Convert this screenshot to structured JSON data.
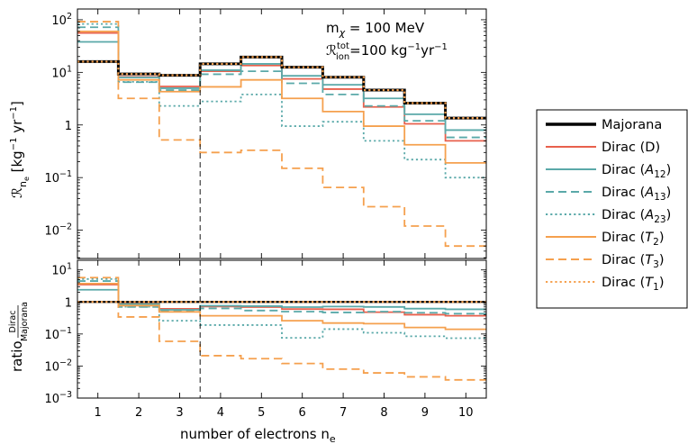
{
  "chart_data": {
    "type": "line",
    "annotation": {
      "line1": "mχ = 100 MeV",
      "line2": "ℛᴵᵒⁿᵗᵒᵗ=100 kg⁻¹yr⁻¹",
      "line1_main": "m",
      "line1_sub": "χ",
      "line1_rest": " = 100 MeV",
      "line2_main": "ℛ",
      "line2_sup": "tot",
      "line2_sub": "ion",
      "line2_rest": "=100 kg",
      "line2_unit1_sup": "−1",
      "line2_unit2": "yr",
      "line2_unit2_sup": "−1"
    },
    "xlabel": "number of electrons n",
    "xlabel_sub": "e",
    "vline_x": 3.5,
    "x": [
      1,
      2,
      3,
      4,
      5,
      6,
      7,
      8,
      9,
      10
    ],
    "xlim": [
      0.5,
      10.5
    ],
    "top": {
      "ylabel_main": "ℛ",
      "ylabel_sub": "n",
      "ylabel_subsub": "e",
      "ylabel_rest": " [kg",
      "ylabel_sup1": "−1",
      "ylabel_rest2": " yr",
      "ylabel_sup2": "−1",
      "ylabel_end": "]",
      "yscale": "log",
      "ylim": [
        0.0029,
        160
      ],
      "yticks": [
        {
          "v": 0.01,
          "base": "10",
          "exp": "−2"
        },
        {
          "v": 0.1,
          "base": "10",
          "exp": "−1"
        },
        {
          "v": 1,
          "base": "1",
          "exp": ""
        },
        {
          "v": 10,
          "base": "10",
          "exp": "1"
        },
        {
          "v": 100,
          "base": "10",
          "exp": "2"
        }
      ],
      "series": [
        {
          "name": "Majorana",
          "color": "#000000",
          "dash": "solid",
          "width": 3,
          "values": [
            16,
            9.3,
            8.8,
            14.5,
            19.5,
            12.5,
            8.1,
            4.6,
            2.6,
            1.35
          ]
        },
        {
          "name": "Dirac (D)",
          "color": "#e8604c",
          "dash": "solid",
          "width": 1.8,
          "values": [
            56,
            8.2,
            5.4,
            10.5,
            13.5,
            7.5,
            4.8,
            2.2,
            1.05,
            0.5
          ]
        },
        {
          "name": "Dirac (A12)",
          "color": "#5aa9a9",
          "dash": "solid",
          "width": 1.8,
          "values": [
            38,
            8.0,
            5.0,
            11.0,
            14.5,
            8.6,
            5.8,
            3.2,
            1.6,
            0.8
          ]
        },
        {
          "name": "Dirac (A13)",
          "color": "#5aa9a9",
          "dash": "dashed",
          "width": 1.8,
          "values": [
            72,
            6.5,
            4.6,
            9.2,
            10.5,
            6.2,
            3.8,
            2.3,
            1.2,
            0.58
          ]
        },
        {
          "name": "Dirac (A23)",
          "color": "#5aa9a9",
          "dash": "dotted",
          "width": 1.8,
          "values": [
            83,
            6.6,
            2.3,
            2.8,
            3.8,
            0.95,
            1.15,
            0.5,
            0.22,
            0.1
          ]
        },
        {
          "name": "Dirac (T2)",
          "color": "#f5a04e",
          "dash": "solid",
          "width": 1.8,
          "values": [
            60,
            7.2,
            4.3,
            5.3,
            7.2,
            3.2,
            1.8,
            0.95,
            0.42,
            0.19
          ]
        },
        {
          "name": "Dirac (T3)",
          "color": "#f5a04e",
          "dash": "dashed",
          "width": 1.8,
          "values": [
            92,
            3.2,
            0.52,
            0.3,
            0.33,
            0.15,
            0.065,
            0.028,
            0.012,
            0.005
          ]
        },
        {
          "name": "Dirac (T1)",
          "color": "#f5a04e",
          "dash": "dotted",
          "width": 2.2,
          "values": [
            16,
            9.3,
            8.8,
            14.5,
            19.5,
            12.5,
            8.1,
            4.6,
            2.6,
            1.35
          ]
        }
      ]
    },
    "bottom": {
      "ylabel_main": "ratio",
      "ylabel_frac_num": "Dirac",
      "ylabel_frac_den": "Majorana",
      "yscale": "log",
      "ylim": [
        0.001,
        20
      ],
      "yticks": [
        {
          "v": 0.001,
          "base": "10",
          "exp": "−3"
        },
        {
          "v": 0.01,
          "base": "10",
          "exp": "−2"
        },
        {
          "v": 0.1,
          "base": "10",
          "exp": "−1"
        },
        {
          "v": 1,
          "base": "1",
          "exp": ""
        },
        {
          "v": 10,
          "base": "10",
          "exp": "1"
        }
      ],
      "series": [
        {
          "name": "Majorana",
          "values": [
            1,
            1,
            1,
            1,
            1,
            1,
            1,
            1,
            1,
            1
          ]
        },
        {
          "name": "Dirac (D)",
          "values": [
            3.5,
            0.88,
            0.61,
            0.72,
            0.69,
            0.6,
            0.59,
            0.48,
            0.4,
            0.37
          ]
        },
        {
          "name": "Dirac (A12)",
          "values": [
            2.4,
            0.86,
            0.57,
            0.76,
            0.74,
            0.69,
            0.72,
            0.7,
            0.62,
            0.59
          ]
        },
        {
          "name": "Dirac (A13)",
          "values": [
            4.5,
            0.7,
            0.52,
            0.63,
            0.54,
            0.5,
            0.47,
            0.5,
            0.46,
            0.43
          ]
        },
        {
          "name": "Dirac (A23)",
          "values": [
            5.2,
            0.71,
            0.26,
            0.19,
            0.19,
            0.076,
            0.142,
            0.109,
            0.085,
            0.074
          ]
        },
        {
          "name": "Dirac (T2)",
          "values": [
            3.75,
            0.77,
            0.49,
            0.37,
            0.37,
            0.26,
            0.22,
            0.21,
            0.16,
            0.14
          ]
        },
        {
          "name": "Dirac (T3)",
          "values": [
            5.75,
            0.34,
            0.059,
            0.021,
            0.017,
            0.012,
            0.008,
            0.0061,
            0.0046,
            0.0037
          ]
        },
        {
          "name": "Dirac (T1)",
          "values": [
            1,
            1,
            1,
            1,
            1,
            1,
            1,
            1,
            1,
            1
          ]
        }
      ]
    },
    "legend": {
      "placement": "right",
      "entries": [
        {
          "label": "Majorana",
          "main": "Majorana",
          "sub": ""
        },
        {
          "label": "Dirac (D)",
          "main": "Dirac (D)",
          "sub": ""
        },
        {
          "label": "Dirac (A12)",
          "main": "Dirac (",
          "it": "A",
          "sub": "12",
          "end": ")"
        },
        {
          "label": "Dirac (A13)",
          "main": "Dirac (",
          "it": "A",
          "sub": "13",
          "end": ")"
        },
        {
          "label": "Dirac (A23)",
          "main": "Dirac (",
          "it": "A",
          "sub": "23",
          "end": ")"
        },
        {
          "label": "Dirac (T2)",
          "main": "Dirac (",
          "it": "T",
          "sub": "2",
          "end": ")"
        },
        {
          "label": "Dirac (T3)",
          "main": "Dirac (",
          "it": "T",
          "sub": "3",
          "end": ")"
        },
        {
          "label": "Dirac (T1)",
          "main": "Dirac (",
          "it": "T",
          "sub": "1",
          "end": ")"
        }
      ]
    }
  }
}
